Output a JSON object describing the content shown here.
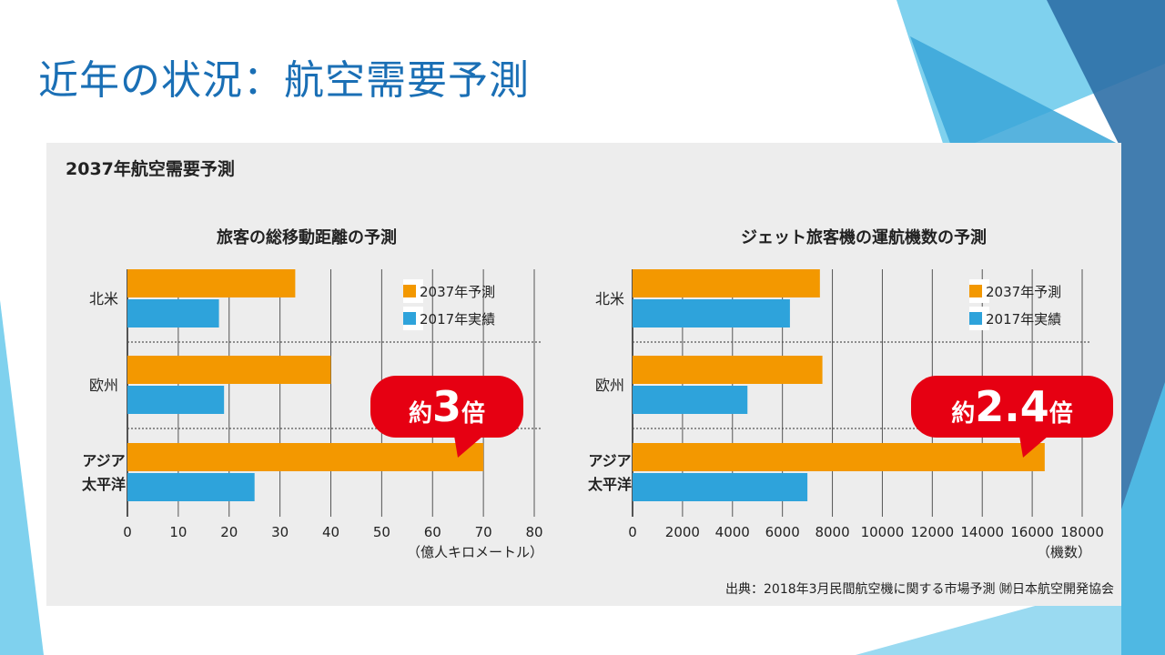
{
  "slide": {
    "title": "近年の状況：航空需要予測"
  },
  "panel": {
    "title": "2037年航空需要予測",
    "source": "出典：2018年3月民間航空機に関する市場予測 ㈶日本航空開発協会"
  },
  "colors": {
    "forecast": "#f39800",
    "actual": "#2ea3db",
    "callout": "#e60012",
    "title": "#1a6fb5"
  },
  "chart_data": [
    {
      "type": "bar",
      "orientation": "horizontal",
      "title": "旅客の総移動距離の予測",
      "xlabel": "（億人キロメートル）",
      "categories": [
        "北米",
        "欧州",
        "アジア太平洋"
      ],
      "category_lines": [
        [
          "北米"
        ],
        [
          "欧州"
        ],
        [
          "アジア",
          "太平洋"
        ]
      ],
      "series": [
        {
          "name": "2037年予測",
          "values": [
            33,
            40,
            70
          ]
        },
        {
          "name": "2017年実績",
          "values": [
            18,
            19,
            25
          ]
        }
      ],
      "xlim": [
        0,
        80
      ],
      "xticks": [
        0,
        10,
        20,
        30,
        40,
        50,
        60,
        70,
        80
      ],
      "grid": true,
      "legend": "top-right",
      "annotation": {
        "prefix": "約",
        "value": "3",
        "suffix": "倍"
      }
    },
    {
      "type": "bar",
      "orientation": "horizontal",
      "title": "ジェット旅客機の運航機数の予測",
      "xlabel": "（機数）",
      "categories": [
        "北米",
        "欧州",
        "アジア太平洋"
      ],
      "category_lines": [
        [
          "北米"
        ],
        [
          "欧州"
        ],
        [
          "アジア",
          "太平洋"
        ]
      ],
      "series": [
        {
          "name": "2037年予測",
          "values": [
            7500,
            7600,
            16500
          ]
        },
        {
          "name": "2017年実績",
          "values": [
            6300,
            4600,
            7000
          ]
        }
      ],
      "xlim": [
        0,
        18000
      ],
      "xticks": [
        0,
        2000,
        4000,
        6000,
        8000,
        10000,
        12000,
        14000,
        16000,
        18000
      ],
      "grid": true,
      "legend": "top-right",
      "annotation": {
        "prefix": "約",
        "value": "2.4",
        "suffix": "倍"
      }
    }
  ]
}
